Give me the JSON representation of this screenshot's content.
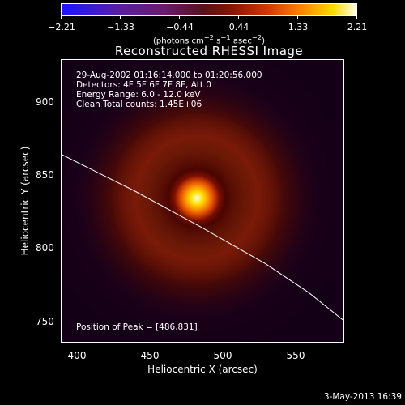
{
  "colorbar": {
    "ticks": [
      "−2.21",
      "−1.33",
      "−0.44",
      "0.44",
      "1.33",
      "2.21"
    ],
    "unit_prefix": "(photons cm",
    "unit_exp1": "−2",
    "unit_mid1": " s",
    "unit_exp2": "−1",
    "unit_mid2": " asec",
    "unit_exp3": "−2",
    "unit_suffix": ")"
  },
  "title": "Reconstructed RHESSI Image",
  "info": {
    "time_range": "29-Aug-2002 01:16:14.000 to 01:20:56.000",
    "detectors": "Detectors: 4F 5F 6F 7F 8F, Att 0",
    "energy_range": "Energy Range: 6.0 - 12.0 keV",
    "clean_counts": "Clean     Total counts: 1.45E+06"
  },
  "peak_label": "Position of Peak = [486,831]",
  "chart_data": {
    "type": "heatmap",
    "xlabel": "Heliocentric X (arcsec)",
    "ylabel": "Heliocentric Y (arcsec)",
    "xlim": [
      390,
      585
    ],
    "ylim": [
      735,
      930
    ],
    "xticks": [
      "400",
      "450",
      "500",
      "550"
    ],
    "yticks": [
      "750",
      "800",
      "850",
      "900"
    ],
    "peak": [
      486,
      831
    ],
    "limb_curve": {
      "x": [
        390,
        440,
        486,
        530,
        560,
        585
      ],
      "y": [
        865,
        840,
        815,
        790,
        770,
        750
      ]
    }
  },
  "colors": {
    "limb": "#ffffff",
    "frame": "#ffffff",
    "background": "#000000"
  },
  "footer_date": "3-May-2013 16:39"
}
